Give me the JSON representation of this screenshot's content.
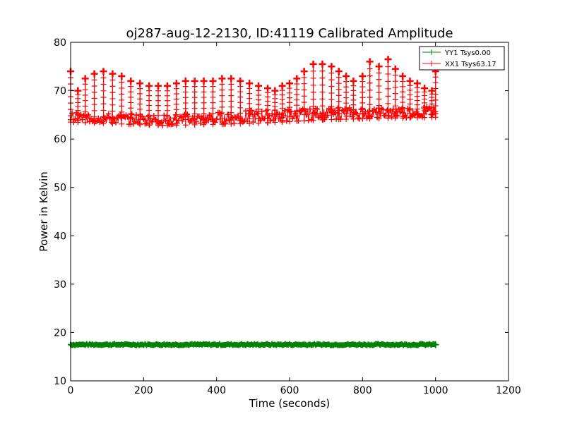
{
  "chart_data": {
    "type": "line",
    "title": "oj287-aug-12-2130, ID:41119 Calibrated Amplitude",
    "xlabel": "Time (seconds)",
    "ylabel": "Power in Kelvin",
    "xlim": [
      0,
      1200
    ],
    "ylim": [
      10,
      80
    ],
    "xticks": [
      0,
      200,
      400,
      600,
      800,
      1000,
      1200
    ],
    "yticks": [
      10,
      20,
      30,
      40,
      50,
      60,
      70,
      80
    ],
    "xtick_labels": [
      "0",
      "200",
      "400",
      "600",
      "800",
      "1000",
      "1200"
    ],
    "ytick_labels": [
      "10",
      "20",
      "30",
      "40",
      "50",
      "60",
      "70",
      "80"
    ],
    "grid": false,
    "legend_position": "top-right",
    "marker": "plus",
    "series": [
      {
        "name": "YY1 Tsys0.00",
        "color": "#008000",
        "x_range": [
          0,
          1000
        ],
        "level": 17.5,
        "spread": 0.3
      },
      {
        "name": "XX1 Tsys63.17",
        "color": "#ff0000",
        "x_range": [
          0,
          1000
        ],
        "baseline_lower": [
          [
            0,
            63.5
          ],
          [
            250,
            62.8
          ],
          [
            500,
            63.2
          ],
          [
            700,
            64.0
          ],
          [
            1000,
            64.5
          ]
        ],
        "baseline_upper": [
          [
            0,
            65.5
          ],
          [
            250,
            65.0
          ],
          [
            500,
            66.0
          ],
          [
            700,
            66.5
          ],
          [
            1000,
            66.8
          ]
        ],
        "spike_peaks": [
          [
            0,
            74
          ],
          [
            20,
            70
          ],
          [
            40,
            72.5
          ],
          [
            65,
            73.5
          ],
          [
            90,
            74
          ],
          [
            115,
            73.5
          ],
          [
            140,
            73
          ],
          [
            165,
            72
          ],
          [
            190,
            71.5
          ],
          [
            215,
            71
          ],
          [
            240,
            71
          ],
          [
            265,
            71
          ],
          [
            290,
            71.5
          ],
          [
            315,
            72
          ],
          [
            340,
            72
          ],
          [
            365,
            72
          ],
          [
            390,
            72
          ],
          [
            415,
            72.5
          ],
          [
            440,
            72.5
          ],
          [
            465,
            72
          ],
          [
            490,
            71.5
          ],
          [
            515,
            71
          ],
          [
            540,
            70.5
          ],
          [
            560,
            70
          ],
          [
            580,
            71
          ],
          [
            600,
            71.5
          ],
          [
            620,
            72.5
          ],
          [
            640,
            74
          ],
          [
            665,
            75.5
          ],
          [
            690,
            75.5
          ],
          [
            715,
            75
          ],
          [
            735,
            74
          ],
          [
            755,
            73
          ],
          [
            775,
            72
          ],
          [
            800,
            73
          ],
          [
            820,
            76
          ],
          [
            845,
            75
          ],
          [
            870,
            76.5
          ],
          [
            890,
            74.5
          ],
          [
            910,
            73
          ],
          [
            930,
            72
          ],
          [
            950,
            71.5
          ],
          [
            970,
            70.5
          ],
          [
            990,
            70
          ],
          [
            1000,
            74
          ]
        ]
      }
    ]
  }
}
